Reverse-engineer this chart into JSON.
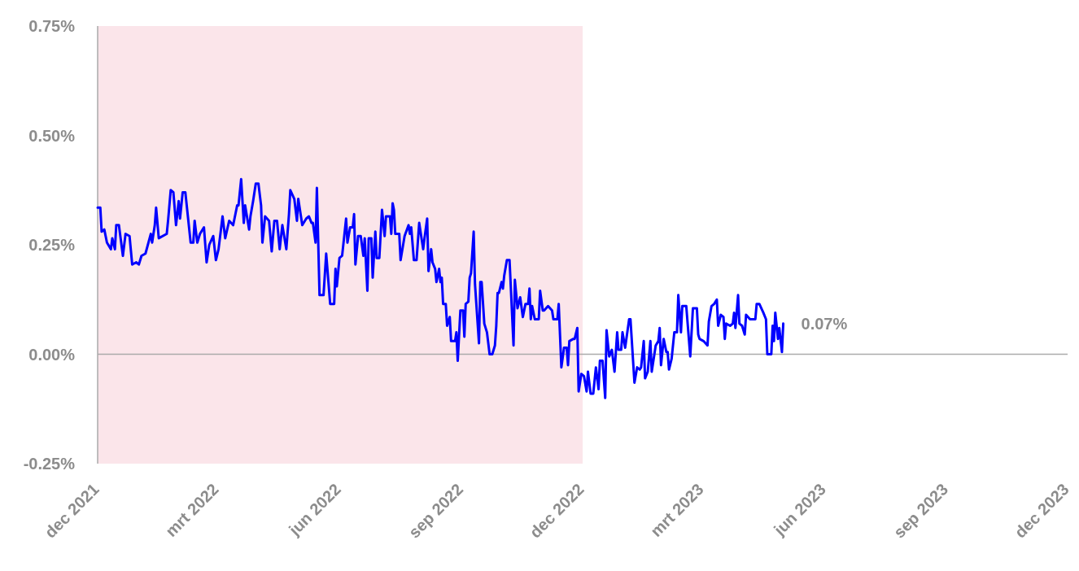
{
  "chart_data": {
    "type": "line",
    "xlim": [
      "2021-12-01",
      "2023-12-01"
    ],
    "xticks": [
      {
        "value": "2021-12-01",
        "label": "dec 2021"
      },
      {
        "value": "2022-03-01",
        "label": "mrt 2022"
      },
      {
        "value": "2022-06-01",
        "label": "jun 2022"
      },
      {
        "value": "2022-09-01",
        "label": "sep 2022"
      },
      {
        "value": "2022-12-01",
        "label": "dec 2022"
      },
      {
        "value": "2023-03-01",
        "label": "mrt 2023"
      },
      {
        "value": "2023-06-01",
        "label": "jun 2023"
      },
      {
        "value": "2023-09-01",
        "label": "sep 2023"
      },
      {
        "value": "2023-12-01",
        "label": "dec 2023"
      }
    ],
    "ylim": [
      -0.25,
      0.75
    ],
    "yticks": [
      {
        "value": -0.25,
        "label": "-0.25%"
      },
      {
        "value": 0,
        "label": "0.00%"
      },
      {
        "value": 0.25,
        "label": "0.25%"
      },
      {
        "value": 0.5,
        "label": "0.50%"
      },
      {
        "value": 0.75,
        "label": "0.75%"
      }
    ],
    "grid": false,
    "bands": [
      {
        "axis": "x",
        "from": "2021-12-01",
        "to": "2022-12-01",
        "color": "#fbe5ea"
      }
    ],
    "ref_lines": [
      {
        "axis": "y",
        "value": 0,
        "color": "#aaaaaa"
      }
    ],
    "annotations": [
      {
        "text": "0.07%",
        "x": "2023-05-01",
        "y": 0.07
      }
    ],
    "series": [
      {
        "color": "#0000ff",
        "x": [
          "2021-12-01",
          "2021-12-03",
          "2021-12-04",
          "2021-12-06",
          "2021-12-08",
          "2021-12-11",
          "2021-12-12",
          "2021-12-14",
          "2021-12-15",
          "2021-12-17",
          "2021-12-20",
          "2021-12-22",
          "2021-12-25",
          "2021-12-27",
          "2021-12-30",
          "2022-01-01",
          "2022-01-03",
          "2022-01-06",
          "2022-01-10",
          "2022-01-11",
          "2022-01-13",
          "2022-01-14",
          "2022-01-16",
          "2022-01-22",
          "2022-01-23",
          "2022-01-25",
          "2022-01-27",
          "2022-01-29",
          "2022-01-31",
          "2022-02-01",
          "2022-02-03",
          "2022-02-05",
          "2022-02-09",
          "2022-02-11",
          "2022-02-12",
          "2022-02-14",
          "2022-02-16",
          "2022-02-19",
          "2022-02-21",
          "2022-02-23",
          "2022-02-26",
          "2022-02-28",
          "2022-03-02",
          "2022-03-05",
          "2022-03-07",
          "2022-03-10",
          "2022-03-13",
          "2022-03-16",
          "2022-03-17",
          "2022-03-19",
          "2022-03-21",
          "2022-03-22",
          "2022-03-25",
          "2022-03-26",
          "2022-03-28",
          "2022-03-30",
          "2022-04-01",
          "2022-04-03",
          "2022-04-04",
          "2022-04-06",
          "2022-04-09",
          "2022-04-11",
          "2022-04-13",
          "2022-04-15",
          "2022-04-17",
          "2022-04-19",
          "2022-04-22",
          "2022-04-24",
          "2022-04-25",
          "2022-04-28",
          "2022-04-30",
          "2022-05-01",
          "2022-05-04",
          "2022-05-07",
          "2022-05-09",
          "2022-05-11",
          "2022-05-12",
          "2022-05-14",
          "2022-05-15",
          "2022-05-17",
          "2022-05-20",
          "2022-05-22",
          "2022-05-25",
          "2022-05-28",
          "2022-05-29",
          "2022-05-30",
          "2022-06-01",
          "2022-06-03",
          "2022-06-06",
          "2022-06-07",
          "2022-06-09",
          "2022-06-11",
          "2022-06-12",
          "2022-06-13",
          "2022-06-15",
          "2022-06-17",
          "2022-06-19",
          "2022-06-20",
          "2022-06-22",
          "2022-06-23",
          "2022-06-25",
          "2022-06-26",
          "2022-06-28",
          "2022-06-29",
          "2022-07-01",
          "2022-07-03",
          "2022-07-05",
          "2022-07-06",
          "2022-07-09",
          "2022-07-10",
          "2022-07-11",
          "2022-07-12",
          "2022-07-13",
          "2022-07-16",
          "2022-07-17",
          "2022-07-20",
          "2022-07-23",
          "2022-07-24",
          "2022-07-25",
          "2022-07-27",
          "2022-07-29",
          "2022-07-31",
          "2022-08-03",
          "2022-08-04",
          "2022-08-06",
          "2022-08-07",
          "2022-08-09",
          "2022-08-10",
          "2022-08-12",
          "2022-08-13",
          "2022-08-15",
          "2022-08-16",
          "2022-08-17",
          "2022-08-18",
          "2022-08-20",
          "2022-08-21",
          "2022-08-23",
          "2022-08-24",
          "2022-08-27",
          "2022-08-28",
          "2022-08-29",
          "2022-08-31",
          "2022-09-02",
          "2022-09-03",
          "2022-09-04",
          "2022-09-06",
          "2022-09-07",
          "2022-09-08",
          "2022-09-10",
          "2022-09-11",
          "2022-09-14",
          "2022-09-15",
          "2022-09-16",
          "2022-09-18",
          "2022-09-20",
          "2022-09-22",
          "2022-09-24",
          "2022-09-26",
          "2022-09-27",
          "2022-09-28",
          "2022-09-29",
          "2022-10-01",
          "2022-10-02",
          "2022-10-03",
          "2022-10-05",
          "2022-10-07",
          "2022-10-10",
          "2022-10-11",
          "2022-10-13",
          "2022-10-15",
          "2022-10-17",
          "2022-10-19",
          "2022-10-21",
          "2022-10-22",
          "2022-10-23",
          "2022-10-24",
          "2022-10-26",
          "2022-10-29",
          "2022-10-30",
          "2022-11-01",
          "2022-11-02",
          "2022-11-05",
          "2022-11-08",
          "2022-11-09",
          "2022-11-12",
          "2022-11-13",
          "2022-11-15",
          "2022-11-17",
          "2022-11-19",
          "2022-11-20",
          "2022-11-21",
          "2022-11-24",
          "2022-11-25",
          "2022-11-27",
          "2022-11-28",
          "2022-11-30",
          "2022-12-02",
          "2022-12-04",
          "2022-12-05",
          "2022-12-07",
          "2022-12-09",
          "2022-12-11",
          "2022-12-13",
          "2022-12-14",
          "2022-12-16",
          "2022-12-18",
          "2022-12-19",
          "2022-12-21",
          "2022-12-23",
          "2022-12-25",
          "2022-12-27",
          "2022-12-28",
          "2022-12-30",
          "2022-12-31",
          "2023-01-02",
          "2023-01-05",
          "2023-01-06",
          "2023-01-09",
          "2023-01-11",
          "2023-01-13",
          "2023-01-14",
          "2023-01-16",
          "2023-01-17",
          "2023-01-19",
          "2023-01-21",
          "2023-01-22",
          "2023-01-25",
          "2023-01-27",
          "2023-01-28",
          "2023-01-29",
          "2023-01-31",
          "2023-02-02",
          "2023-02-03",
          "2023-02-04",
          "2023-02-06",
          "2023-02-08",
          "2023-02-10",
          "2023-02-11",
          "2023-02-13",
          "2023-02-14",
          "2023-02-17",
          "2023-02-20",
          "2023-02-22",
          "2023-02-25",
          "2023-02-26",
          "2023-02-27",
          "2023-03-02",
          "2023-03-05",
          "2023-03-06",
          "2023-03-08",
          "2023-03-10",
          "2023-03-12",
          "2023-03-13",
          "2023-03-15",
          "2023-03-17",
          "2023-03-18",
          "2023-03-19",
          "2023-03-22",
          "2023-03-24",
          "2023-03-25",
          "2023-03-26",
          "2023-03-28",
          "2023-03-29",
          "2023-03-31",
          "2023-04-02",
          "2023-04-03",
          "2023-04-06",
          "2023-04-08",
          "2023-04-10",
          "2023-04-11",
          "2023-04-13",
          "2023-04-16",
          "2023-04-18",
          "2023-04-19",
          "2023-04-22",
          "2023-04-23",
          "2023-04-24",
          "2023-04-25",
          "2023-04-27",
          "2023-04-28",
          "2023-04-30",
          "2023-05-01"
        ],
        "values": [
          0.335,
          0.335,
          0.28,
          0.285,
          0.255,
          0.24,
          0.265,
          0.24,
          0.295,
          0.295,
          0.225,
          0.275,
          0.27,
          0.205,
          0.21,
          0.205,
          0.225,
          0.23,
          0.275,
          0.255,
          0.295,
          0.335,
          0.265,
          0.275,
          0.305,
          0.375,
          0.37,
          0.295,
          0.35,
          0.31,
          0.37,
          0.37,
          0.255,
          0.255,
          0.305,
          0.255,
          0.275,
          0.29,
          0.21,
          0.25,
          0.27,
          0.215,
          0.24,
          0.315,
          0.265,
          0.305,
          0.295,
          0.34,
          0.34,
          0.4,
          0.3,
          0.34,
          0.285,
          0.315,
          0.35,
          0.39,
          0.39,
          0.34,
          0.255,
          0.315,
          0.305,
          0.235,
          0.305,
          0.305,
          0.24,
          0.295,
          0.24,
          0.32,
          0.375,
          0.355,
          0.305,
          0.355,
          0.295,
          0.31,
          0.315,
          0.3,
          0.3,
          0.255,
          0.38,
          0.135,
          0.135,
          0.23,
          0.115,
          0.115,
          0.195,
          0.155,
          0.22,
          0.225,
          0.31,
          0.255,
          0.29,
          0.29,
          0.32,
          0.205,
          0.27,
          0.27,
          0.225,
          0.265,
          0.145,
          0.265,
          0.265,
          0.175,
          0.28,
          0.22,
          0.22,
          0.33,
          0.27,
          0.315,
          0.315,
          0.275,
          0.345,
          0.33,
          0.275,
          0.275,
          0.215,
          0.27,
          0.295,
          0.275,
          0.29,
          0.215,
          0.215,
          0.3,
          0.24,
          0.265,
          0.31,
          0.19,
          0.24,
          0.21,
          0.195,
          0.165,
          0.195,
          0.165,
          0.175,
          0.115,
          0.115,
          0.065,
          0.085,
          0.03,
          0.03,
          0.05,
          -0.015,
          0.1,
          0.1,
          0.04,
          0.115,
          0.12,
          0.175,
          0.185,
          0.28,
          0.16,
          0.025,
          0.165,
          0.165,
          0.07,
          0.05,
          0,
          0,
          0.02,
          0.065,
          0.14,
          0.14,
          0.165,
          0.15,
          0.18,
          0.215,
          0.215,
          0.02,
          0.17,
          0.105,
          0.13,
          0.085,
          0.115,
          0.115,
          0.15,
          0.08,
          0.11,
          0.08,
          0.08,
          0.145,
          0.1,
          0.1,
          0.11,
          0.1,
          0.08,
          0.08,
          0.115,
          -0.03,
          0.015,
          0.015,
          -0.025,
          0.03,
          0.035,
          0.035,
          0.06,
          -0.085,
          -0.045,
          -0.05,
          -0.085,
          -0.04,
          -0.09,
          -0.09,
          -0.03,
          -0.08,
          -0.015,
          -0.015,
          -0.1,
          0.055,
          -0.005,
          0.01,
          -0.04,
          0.05,
          0.01,
          0.01,
          0.05,
          0.015,
          0.08,
          0.08,
          -0.065,
          -0.03,
          -0.035,
          -0.03,
          0.03,
          -0.055,
          -0.04,
          0.03,
          -0.04,
          0.02,
          0.03,
          0.06,
          -0.025,
          0.035,
          0.005,
          0.005,
          -0.035,
          -0.01,
          0.05,
          0.05,
          0.135,
          0.05,
          0.11,
          0.11,
          -0.005,
          0.105,
          0.105,
          0.045,
          0.035,
          0.03,
          0.02,
          0.075,
          0.11,
          0.115,
          0.125,
          0.065,
          0.09,
          0.085,
          0.035,
          0.07,
          0.065,
          0.07,
          0.095,
          0.06,
          0.135,
          0.07,
          0.065,
          0.045,
          0.09,
          0.08,
          0.08,
          0.08,
          0.115,
          0.115,
          0.095,
          0.08,
          0,
          0,
          0.065,
          0.03,
          0.095,
          0.035,
          0.06,
          0.005,
          0.07
        ]
      }
    ]
  }
}
